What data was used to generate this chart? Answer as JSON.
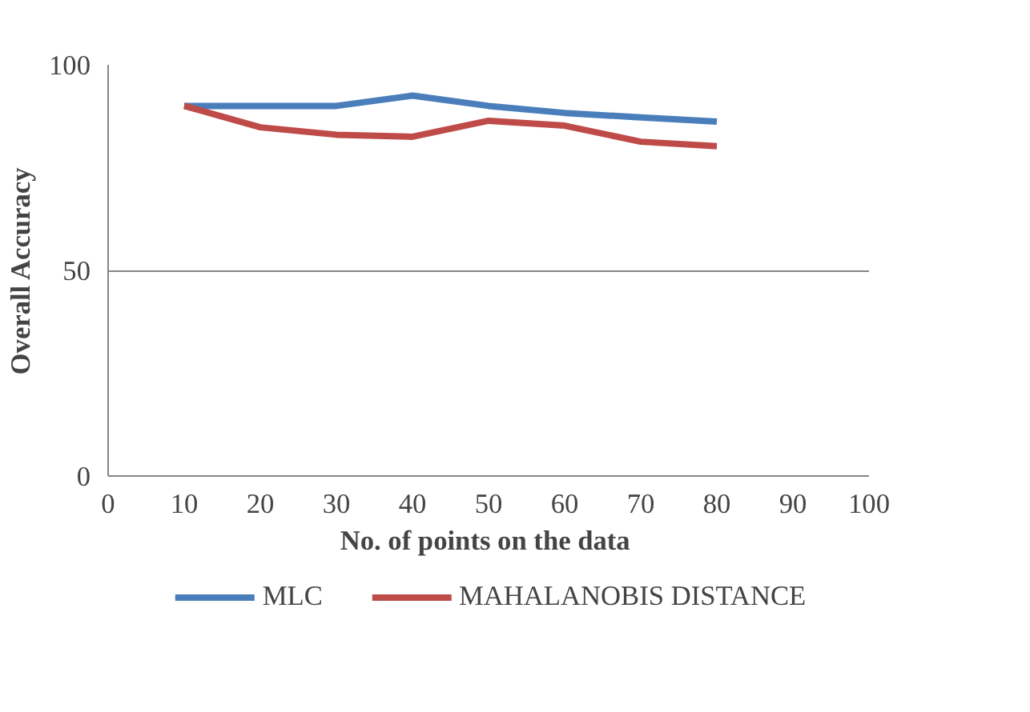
{
  "chart_data": {
    "type": "line",
    "xlabel": "No. of points  on the data",
    "ylabel": "Overall Accuracy",
    "x": [
      10,
      20,
      30,
      40,
      50,
      60,
      70,
      80
    ],
    "series": [
      {
        "name": "MLC",
        "color": "#4a7ebb",
        "values": [
          90,
          90,
          90,
          92.5,
          90,
          88.3,
          87.2,
          86.2
        ]
      },
      {
        "name": "MAHALANOBIS DISTANCE",
        "color": "#be4b48",
        "values": [
          90,
          84.8,
          83,
          82.5,
          86.4,
          85.2,
          81.3,
          80.2
        ]
      }
    ],
    "xlim": [
      0,
      100
    ],
    "xticks": [
      0,
      10,
      20,
      30,
      40,
      50,
      60,
      70,
      80,
      90,
      100
    ],
    "ylim": [
      0,
      100
    ],
    "yticks": [
      0,
      50,
      100
    ],
    "grid": "y",
    "legend": "bottom",
    "marker": "none",
    "line_style": "solid"
  }
}
